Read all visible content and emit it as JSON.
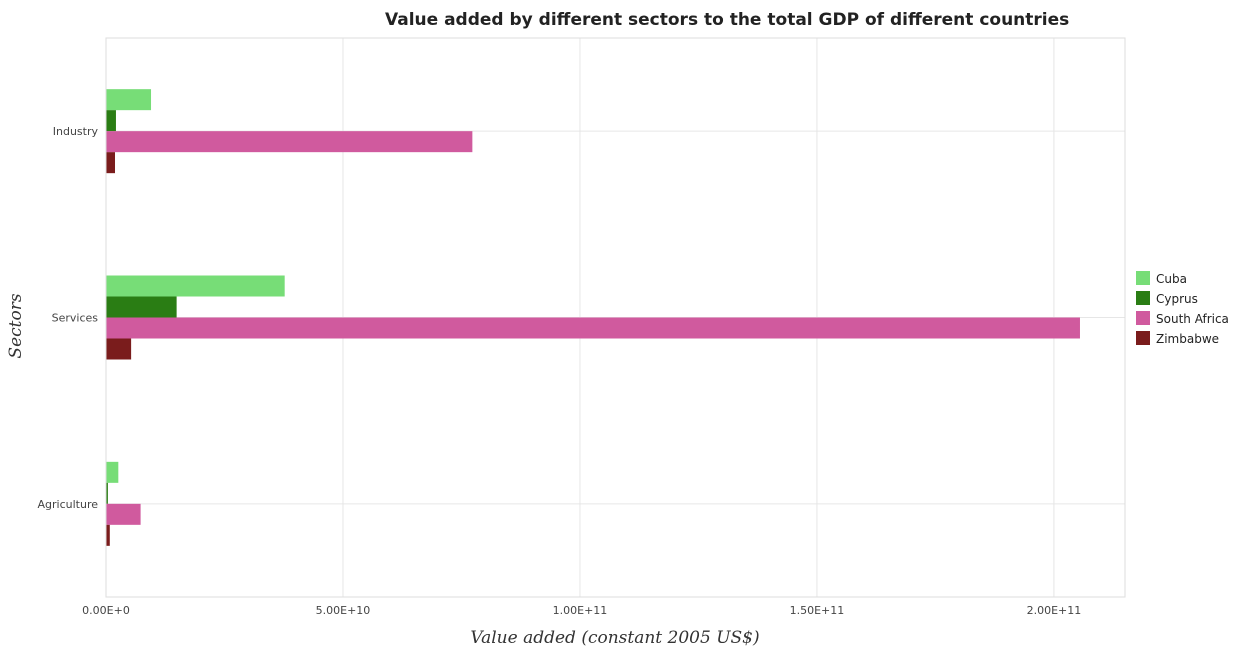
{
  "chart_data": {
    "type": "bar",
    "orientation": "horizontal",
    "title": "Value added by different sectors to the total GDP of different countries",
    "xlabel": "Value added (constant 2005 US$)",
    "ylabel": "Sectors",
    "categories": [
      "Industry",
      "Services",
      "Agriculture"
    ],
    "xlim": [
      0,
      215000000000
    ],
    "xticks": [
      0,
      50000000000,
      100000000000,
      150000000000,
      200000000000
    ],
    "xtick_labels": [
      "0.00E+0",
      "5.00E+10",
      "1.00E+11",
      "1.50E+11",
      "2.00E+11"
    ],
    "grid": true,
    "legend_position": "right",
    "series": [
      {
        "name": "Cuba",
        "color": "#77dd77",
        "values": [
          9500000000,
          37700000000,
          2600000000
        ]
      },
      {
        "name": "Cyprus",
        "color": "#2a7d14",
        "values": [
          2100000000,
          14900000000,
          400000000
        ]
      },
      {
        "name": "South Africa",
        "color": "#d05a9e",
        "values": [
          77300000000,
          205500000000,
          7300000000
        ]
      },
      {
        "name": "Zimbabwe",
        "color": "#7a1c1c",
        "values": [
          1900000000,
          5300000000,
          800000000
        ]
      }
    ]
  }
}
